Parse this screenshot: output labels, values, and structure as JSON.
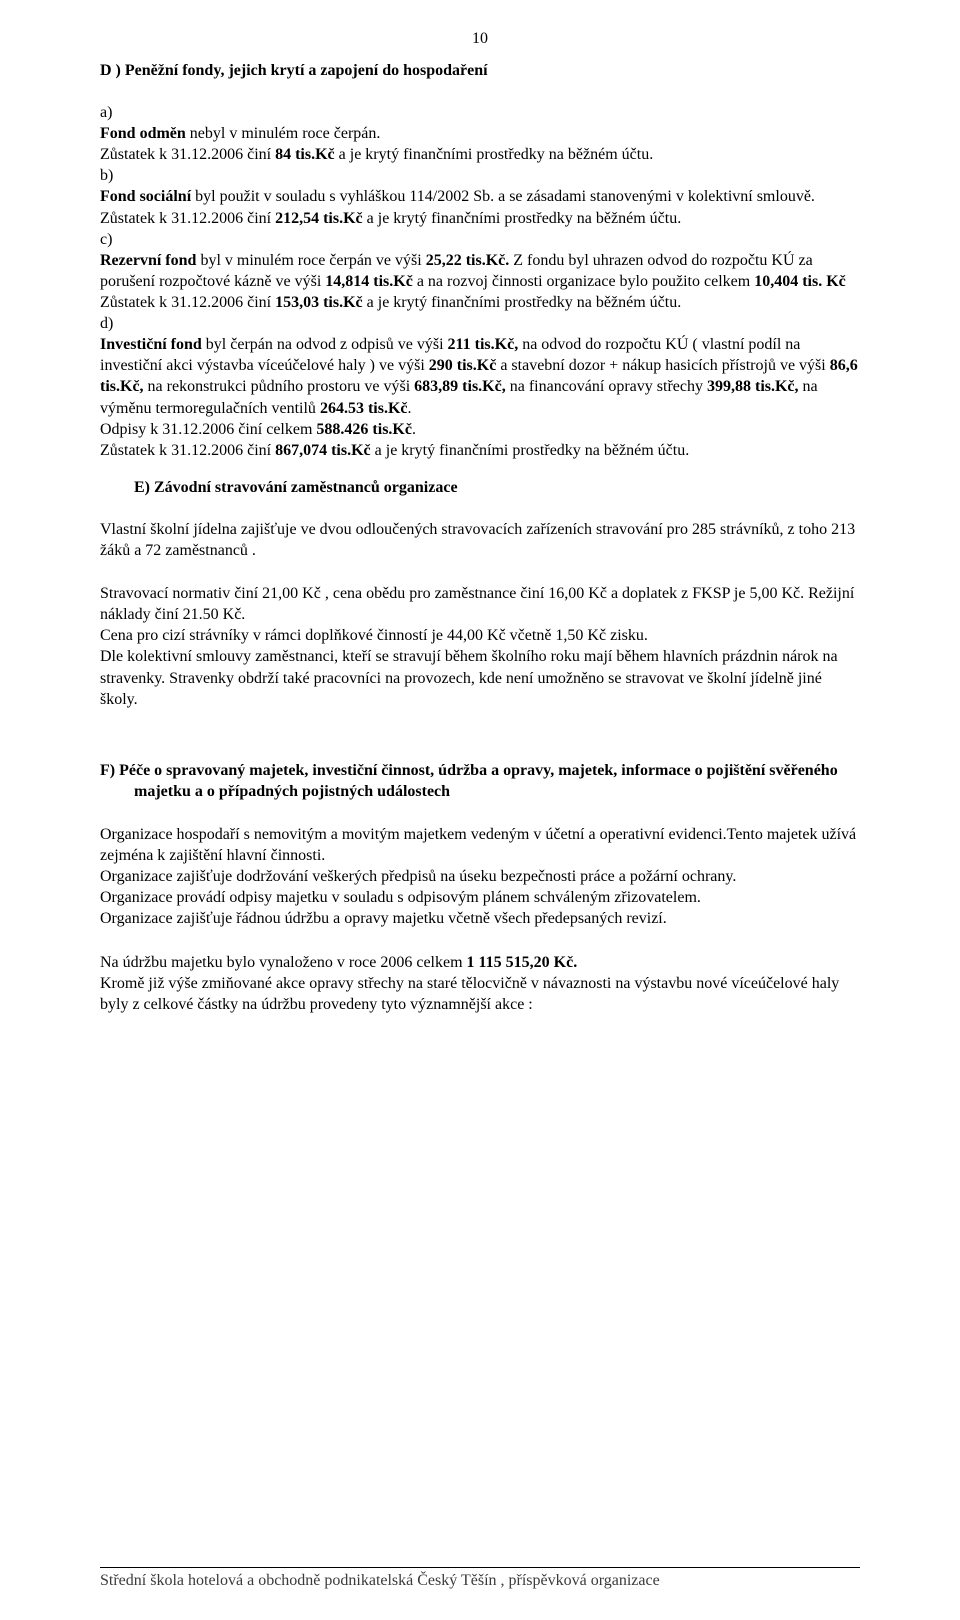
{
  "page_number": "10",
  "section_d": {
    "heading": "D )  Peněžní fondy, jejich krytí a zapojení do hospodaření",
    "a_label": "a)",
    "a_line1_bold": "Fond odměn",
    "a_line1_rest": " nebyl  v minulém roce  čerpán.",
    "a_line2_pre": "Zůstatek  k 31.12.2006 činí ",
    "a_line2_bold": "84 tis.Kč",
    "a_line2_post": " a je krytý finančními prostředky na běžném účtu.",
    "b_label": "b)",
    "b_line1_bold": "Fond sociální",
    "b_line1_rest": " byl použit v souladu s vyhláškou 114/2002 Sb.  a se zásadami stanovenými v kolektivní  smlouvě. Zůstatek k 31.12.2006 činí ",
    "b_line1_bold2": " 212,54 tis.Kč",
    "b_line1_post": " a je krytý finančními prostředky na běžném účtu.",
    "c_label": "c)",
    "c_line_bold1": "Rezervní fond",
    "c_line_mid1": " byl v  minulém roce čerpán ve výši ",
    "c_line_bold2": "25,22 tis.Kč.",
    "c_line_mid2": " Z fondu byl uhrazen odvod do rozpočtu KÚ za porušení rozpočtové kázně ve výši ",
    "c_line_bold3": "14,814 tis.Kč",
    "c_line_mid3": " a na rozvoj  činnosti organizace bylo použito celkem ",
    "c_line_bold4": "10,404 tis. Kč",
    "c_line2_pre": "Zůstatek  k 31.12.2006 činí ",
    "c_line2_bold": "153,03 tis.Kč",
    "c_line2_post": " a je krytý finančními prostředky na běžném účtu.",
    "d_label": "d)",
    "d_line_bold1": "Investiční fond",
    "d_line_mid1": " byl čerpán na odvod z odpisů ve výši ",
    "d_line_bold2": "211 tis.Kč,",
    "d_line_mid2": " na odvod do rozpočtu KÚ ( vlastní podíl na investiční akci výstavba víceúčelové haly ) ve výši ",
    "d_line_bold3": "290 tis.Kč",
    "d_line_mid3": " a stavební dozor + nákup hasicích přístrojů ve výši ",
    "d_line_bold4": "86,6 tis.Kč,",
    "d_line_mid4": " na rekonstrukci půdního prostoru ve výši ",
    "d_line_bold5": "683,89 tis.Kč,",
    "d_line_mid5": " na financování opravy střechy ",
    "d_line_bold6": "399,88 tis.Kč,",
    "d_line_mid6": " na výměnu termoregulačních ventilů ",
    "d_line_bold7": "264.53 tis.Kč",
    "d_line_mid7": ".",
    "d_line_odp_pre": "Odpisy k 31.12.2006 činí celkem ",
    "d_line_odp_bold": "588.426 tis.Kč",
    "d_line_odp_post": ".",
    "d_line_zust_pre": "Zůstatek  k 31.12.2006 činí ",
    "d_line_zust_bold": "867,074 tis.Kč",
    "d_line_zust_post": " a je krytý finančními prostředky na běžném účtu."
  },
  "section_e": {
    "heading": "E)  Závodní stravování zaměstnanců organizace",
    "p1": "Vlastní školní jídelna zajišťuje ve dvou odloučených stravovacích zařízeních stravování pro 285 strávníků, z toho 213  žáků a 72 zaměstnanců .",
    "p2": "Stravovací normativ činí 21,00 Kč , cena obědu pro zaměstnance činí  16,00 Kč a doplatek z FKSP je 5,00 Kč.   Režijní náklady činí  21.50 Kč.",
    "p3": "Cena pro cizí strávníky v rámci doplňkové činností je  44,00 Kč včetně 1,50 Kč zisku.",
    "p4": "Dle kolektivní smlouvy zaměstnanci, kteří se stravují během školního roku mají  během hlavních prázdnin nárok na stravenky. Stravenky obdrží také pracovníci na provozech, kde není umožněno se stravovat ve  školní jídelně jiné školy."
  },
  "section_f": {
    "heading": "F)   Péče o spravovaný majetek, investiční činnost, údržba a opravy, majetek, informace o pojištění svěřeného majetku a o případných pojistných událostech",
    "p1": "Organizace  hospodaří s nemovitým a movitým  majetkem  vedeným v účetní a operativní evidenci.Tento  majetek  užívá zejména k zajištění hlavní činnosti.",
    "p2": "Organizace  zajišťuje  dodržování veškerých předpisů na úseku bezpečnosti práce a požární  ochrany.",
    "p3": "Organizace  provádí  odpisy majetku v souladu s odpisovým plánem schváleným   zřizovatelem.",
    "p4": "Organizace  zajišťuje řádnou  údržbu a opravy  majetku  včetně všech předepsaných revizí.",
    "p5_pre": "Na údržbu majetku bylo  vynaloženo v roce 2006 celkem  ",
    "p5_bold": "1 115 515,20 Kč.",
    "p6": "Kromě již výše zmiňované akce opravy střechy na staré tělocvičně v návaznosti na výstavbu nové víceúčelové haly byly z celkové částky na údržbu provedeny tyto významnější akce :"
  },
  "footer_text": "Střední škola hotelová a obchodně podnikatelská Český Těšín , příspěvková organizace"
}
